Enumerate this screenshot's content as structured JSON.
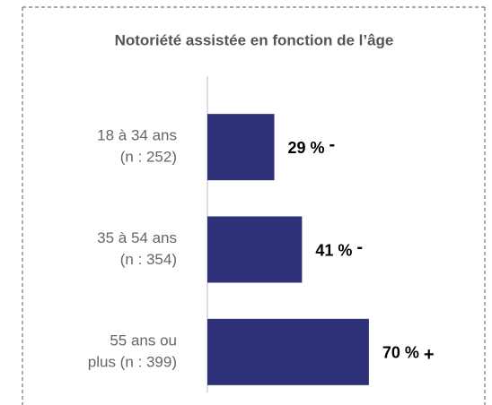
{
  "chart_data": {
    "type": "bar",
    "orientation": "horizontal",
    "title": "Notoriété assistée en fonction de l’âge",
    "categories": [
      [
        "18 à 34 ans",
        "(n : 252)"
      ],
      [
        "35 à 54 ans",
        "(n : 354)"
      ],
      [
        "55 ans ou",
        "plus (n : 399)"
      ]
    ],
    "values": [
      29,
      41,
      70
    ],
    "value_labels": [
      "29 %",
      "41 %",
      "70 %"
    ],
    "significance": [
      "-",
      "-",
      "+"
    ],
    "color": "#2e3078",
    "xlim": [
      0,
      100
    ]
  }
}
